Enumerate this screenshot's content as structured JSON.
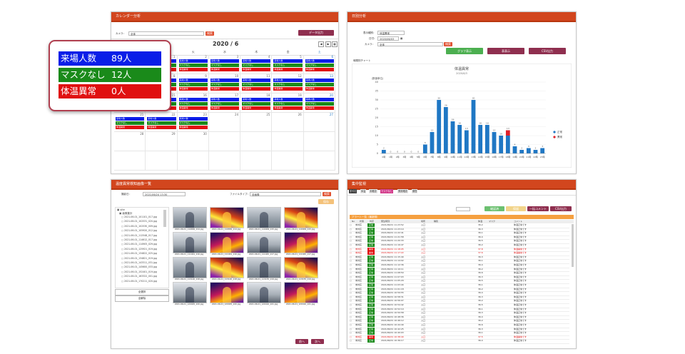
{
  "calendar_panel": {
    "title": "カレンダー分析",
    "camera_label": "カメラ：",
    "camera_value": "全体",
    "search_button": "検索",
    "export_button": "データ出力",
    "month": "2020 / 6",
    "weekdays": [
      "日",
      "月",
      "火",
      "水",
      "木",
      "金",
      "土"
    ],
    "day_labels": [
      "1",
      "2",
      "3",
      "4",
      "5",
      "6",
      "7",
      "8",
      "9",
      "10",
      "11",
      "12",
      "13",
      "14",
      "15",
      "16",
      "17",
      "18",
      "19",
      "20",
      "21",
      "22",
      "23",
      "24",
      "25",
      "26",
      "27",
      "28",
      "29",
      "30"
    ],
    "bar_labels": {
      "visitors": "来場人数",
      "no_mask": "マスクなし",
      "fever": "体温異常"
    }
  },
  "summary": {
    "visitors_label": "来場人数",
    "visitors_value": "89人",
    "no_mask_label": "マスクなし",
    "no_mask_value": "12人",
    "fever_label": "体温異常",
    "fever_value": "0人"
  },
  "daily_panel": {
    "title": "日別分析",
    "type_label": "表示種別：",
    "type_value": "体温異常",
    "date_label": "日付：",
    "date_value": "2020/06/03",
    "camera_label": "カメラ：",
    "camera_value": "全体",
    "search_button": "検索",
    "graph_button": "グラフ表示",
    "table_button": "表表示",
    "csv_button": "CSV出力",
    "chart_section_label": "時間別チャート"
  },
  "chart_data": {
    "type": "bar",
    "title": "体温異常",
    "subtitle": "2020/6/3",
    "ylabel": "(数値単位)",
    "ylim": [
      0,
      40
    ],
    "yticks": [
      "0",
      "5",
      "10",
      "15",
      "20",
      "25",
      "30",
      "35",
      "40"
    ],
    "categories": [
      "0時",
      "1時",
      "2時",
      "3時",
      "4時",
      "5時",
      "6時",
      "7時",
      "8時",
      "9時",
      "10時",
      "11時",
      "12時",
      "13時",
      "14時",
      "15時",
      "16時",
      "17時",
      "18時",
      "19時",
      "20時",
      "21時",
      "22時",
      "23時"
    ],
    "series": [
      {
        "name": "正常",
        "color": "#1f77c4",
        "values": [
          2,
          0,
          0,
          0,
          0,
          0,
          5,
          12,
          30,
          26,
          18,
          16,
          13,
          30,
          16,
          16,
          12,
          10,
          10,
          4,
          2,
          3,
          2,
          3
        ]
      },
      {
        "name": "異常",
        "color": "#e0202a",
        "values": [
          0,
          0,
          0,
          0,
          0,
          0,
          0,
          0,
          0,
          0,
          0,
          0,
          0,
          0,
          0,
          0,
          0,
          0,
          3,
          0,
          0,
          0,
          0,
          0
        ]
      }
    ],
    "legend": "right"
  },
  "image_panel": {
    "title": "温度異常検知画像一覧",
    "date_label": "撮影日：",
    "date_value": "2021/06/24 13:30",
    "file_label": "ファイルタイプ：",
    "file_value": "全画像",
    "search_button": "検索",
    "download_button": "保存",
    "tree_root": "site",
    "tree_folder": "画像集計",
    "files": [
      "2021-06-01_101101_017.jpg",
      "2021-06-01_102531_020.jpg",
      "2021-06-01_102530_009.jpg",
      "2021-06-01_105920_012.jpg",
      "2021-06-01_112548_017.jpg",
      "2021-06-01_114612_017.jpg",
      "2021-06-01_114905_029.jpg",
      "2021-06-01_125921_019.jpg",
      "2021-06-01_134822_025.jpg",
      "2021-06-01_134821_019.jpg",
      "2021-06-01_143311_031.jpg",
      "2021-06-01_145600_033.jpg",
      "2021-06-01_152401_019.jpg",
      "2021-06-01_163322_001.jpg",
      "2021-06-01_170211_020.jpg"
    ],
    "select_all": "全選択",
    "deselect": "全解除",
    "thumb_captions": [
      "2021-06-01_110836_214.jpg",
      "2021-06-01_110836_214.jpg",
      "2021-06-01_110909_215.jpg",
      "2021-06-01_110909_215.jpg",
      "2021-06-01_111001_216.jpg",
      "2021-06-01_111001_216.jpg",
      "2021-06-01_111045_217.jpg",
      "2021-06-01_111045_217.jpg",
      "2021-06-01_113120_218.jpg",
      "2021-06-01_113120_218.jpg",
      "2021-06-01_113155_219.jpg",
      "2021-06-01_113155_219.jpg",
      "2021-06-01_120005_220.jpg",
      "2021-06-01_120005_220.jpg",
      "2021-06-01_120410_221.jpg",
      "2021-06-01_120410_221.jpg"
    ],
    "prev_button": "前へ",
    "next_button": "次へ"
  },
  "monitor_panel": {
    "title": "集中監視",
    "tabs": [
      "すべて",
      "体温",
      "未確認",
      "マスクなし",
      "異常確認",
      "期間"
    ],
    "confirm_button": "確認済",
    "ignore_button": "保留",
    "comment_button": "一括コメント",
    "csv_button": "CSV出力",
    "list_title": "アラート一覧（最新順）",
    "columns": [
      "No",
      "状態",
      "判定",
      "発生時刻",
      "場所",
      "種別",
      "体温",
      "マスク",
      "コメント"
    ],
    "rows": [
      {
        "status": "未対応",
        "judge": "正常",
        "time": "2021/06/01 11:23:52",
        "place": "入口",
        "temp": "36.2",
        "comment": "体温正常です"
      },
      {
        "status": "未対応",
        "judge": "正常",
        "time": "2021/06/01 11:23:10",
        "place": "入口",
        "temp": "36.3",
        "comment": "体温正常です"
      },
      {
        "status": "未対応",
        "judge": "正常",
        "time": "2021/06/01 11:22:41",
        "place": "入口",
        "temp": "36.1",
        "comment": "体温正常です"
      },
      {
        "status": "未対応",
        "judge": "正常",
        "time": "2021/06/01 11:21:58",
        "place": "入口",
        "temp": "36.4",
        "comment": "体温正常です"
      },
      {
        "status": "未対応",
        "judge": "正常",
        "time": "2021/06/01 11:20:33",
        "place": "入口",
        "temp": "36.5",
        "comment": "体温正常です"
      },
      {
        "status": "未対応",
        "judge": "正常",
        "time": "2021/06/01 11:19:47",
        "place": "入口",
        "temp": "36.2",
        "comment": "体温正常です"
      },
      {
        "status": "未対応",
        "judge": "異常",
        "time": "2021/06/01 11:18:05",
        "place": "入口",
        "temp": "37.8",
        "comment": "体温異常です"
      },
      {
        "status": "未対応",
        "judge": "異常",
        "time": "2021/06/01 11:17:22",
        "place": "入口",
        "temp": "37.6",
        "comment": "体温異常です"
      },
      {
        "status": "未対応",
        "judge": "正常",
        "time": "2021/06/01 11:15:40",
        "place": "入口",
        "temp": "36.3",
        "comment": "体温正常です"
      },
      {
        "status": "未対応",
        "judge": "正常",
        "time": "2021/06/01 11:14:02",
        "place": "入口",
        "temp": "36.1",
        "comment": "体温正常です"
      },
      {
        "status": "未対応",
        "judge": "正常",
        "time": "2021/06/01 11:12:36",
        "place": "入口",
        "temp": "36.4",
        "comment": "体温正常です"
      },
      {
        "status": "未対応",
        "judge": "正常",
        "time": "2021/06/01 11:10:11",
        "place": "入口",
        "temp": "36.2",
        "comment": "体温正常です"
      },
      {
        "status": "未対応",
        "judge": "正常",
        "time": "2021/06/01 11:08:50",
        "place": "入口",
        "temp": "36.6",
        "comment": "体温正常です"
      },
      {
        "status": "未対応",
        "judge": "正常",
        "time": "2021/06/01 11:07:03",
        "place": "入口",
        "temp": "36.3",
        "comment": "体温正常です"
      },
      {
        "status": "未対応",
        "judge": "正常",
        "time": "2021/06/01 11:05:29",
        "place": "入口",
        "temp": "36.5",
        "comment": "体温正常です"
      },
      {
        "status": "未対応",
        "judge": "正常",
        "time": "2021/06/01 11:03:44",
        "place": "入口",
        "temp": "36.1",
        "comment": "体温正常です"
      },
      {
        "status": "未対応",
        "judge": "正常",
        "time": "2021/06/01 11:01:18",
        "place": "入口",
        "temp": "36.2",
        "comment": "体温正常です"
      },
      {
        "status": "未対応",
        "judge": "正常",
        "time": "2021/06/01 10:59:55",
        "place": "入口",
        "temp": "36.4",
        "comment": "体温正常です"
      },
      {
        "status": "未対応",
        "judge": "正常",
        "time": "2021/06/01 10:58:31",
        "place": "入口",
        "temp": "36.3",
        "comment": "体温正常です"
      },
      {
        "status": "未対応",
        "judge": "正常",
        "time": "2021/06/01 10:56:07",
        "place": "入口",
        "temp": "36.2",
        "comment": "体温正常です"
      },
      {
        "status": "未対応",
        "judge": "正常",
        "time": "2021/06/01 10:54:42",
        "place": "入口",
        "temp": "36.5",
        "comment": "体温正常です"
      },
      {
        "status": "未対応",
        "judge": "正常",
        "time": "2021/06/01 10:52:19",
        "place": "入口",
        "temp": "36.1",
        "comment": "体温正常です"
      },
      {
        "status": "未対応",
        "judge": "正常",
        "time": "2021/06/01 10:50:58",
        "place": "入口",
        "temp": "36.3",
        "comment": "体温正常です"
      },
      {
        "status": "未対応",
        "judge": "正常",
        "time": "2021/06/01 10:48:36",
        "place": "入口",
        "temp": "36.4",
        "comment": "体温正常です"
      },
      {
        "status": "未対応",
        "judge": "正常",
        "time": "2021/06/01 10:46:12",
        "place": "入口",
        "temp": "36.2",
        "comment": "体温正常です"
      },
      {
        "status": "未対応",
        "judge": "正常",
        "time": "2021/06/01 10:44:49",
        "place": "入口",
        "temp": "36.6",
        "comment": "体温正常です"
      },
      {
        "status": "未対応",
        "judge": "正常",
        "time": "2021/06/01 10:42:25",
        "place": "入口",
        "temp": "36.3",
        "comment": "体温正常です"
      },
      {
        "status": "未対応",
        "judge": "正常",
        "time": "2021/06/01 10:40:03",
        "place": "入口",
        "temp": "36.1",
        "comment": "体温正常です"
      },
      {
        "status": "未対応",
        "judge": "異常",
        "time": "2021/06/01 10:38:40",
        "place": "入口",
        "temp": "37.5",
        "comment": "体温異常です"
      },
      {
        "status": "未対応",
        "judge": "正常",
        "time": "2021/06/01 10:36:17",
        "place": "入口",
        "temp": "36.4",
        "comment": "体温正常です"
      }
    ]
  },
  "colors": {
    "header": "#d2461e",
    "visitors": "#0a1ee8",
    "no_mask": "#1a8a1a",
    "fever": "#e01010",
    "accent_button": "#8f2f4f",
    "green_button": "#4caf50"
  }
}
